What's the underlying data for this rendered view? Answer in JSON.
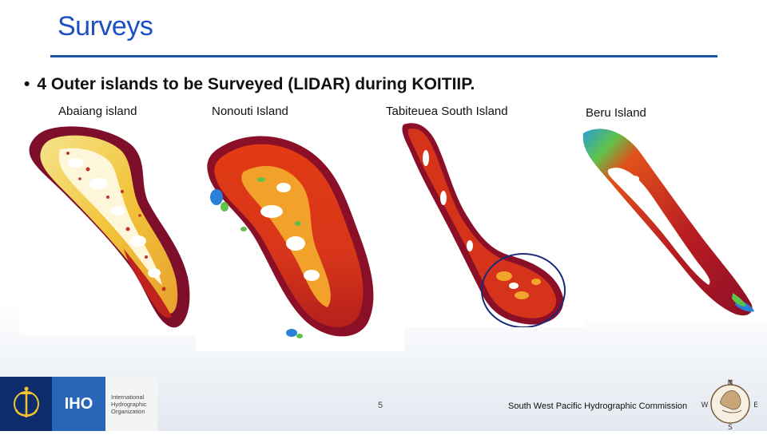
{
  "slide": {
    "title": "Surveys",
    "bullet": "4 Outer islands to be Surveyed (LIDAR) during KOITIIP.",
    "bullet_marker": "•",
    "page_number": "5",
    "footer_org": "South West Pacific Hydrographic Commission"
  },
  "islands": [
    {
      "label": "Abaiang island"
    },
    {
      "label": "Nonouti Island"
    },
    {
      "label": "Tabiteuea South Island"
    },
    {
      "label": "Beru Island"
    }
  ],
  "iho_logo": {
    "acronym": "IHO",
    "name_lines": [
      "International",
      "Hydrographic",
      "Organization"
    ]
  },
  "swphc_logo": {
    "compass": [
      "N",
      "E",
      "S",
      "W"
    ]
  },
  "colors": {
    "title": "#1b4fc4",
    "rule": "#1f55a8",
    "lidar_deep": "#8b0a2a",
    "lidar_mid": "#e03a12",
    "lidar_shallow": "#f7d84a",
    "lidar_green": "#5fc24a",
    "lidar_blue": "#2a7fd6",
    "highlight_circle": "#1a2a78"
  },
  "icons": [
    "anchor-emblem-icon",
    "compass-rose-icon"
  ]
}
